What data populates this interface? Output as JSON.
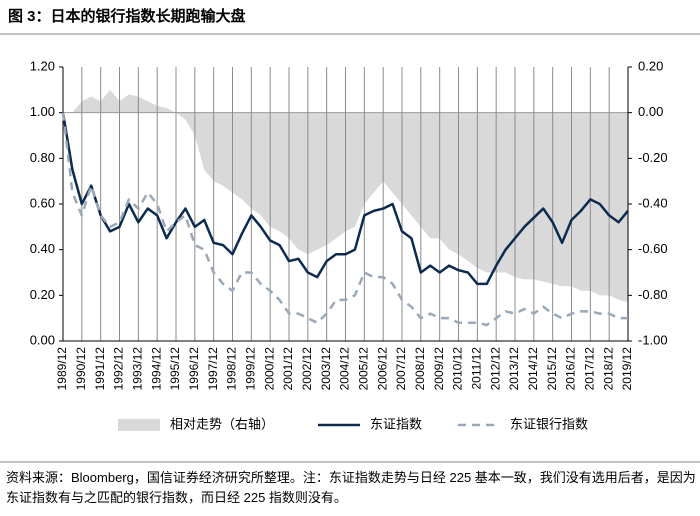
{
  "chart_data": {
    "type": "line",
    "title": "图 3：日本的银行指数长期跑输大盘",
    "note": "资料来源：Bloomberg，国信证券经济研究所整理。注：东证指数走势与日经 225 基本一致，我们没有选用后者，是因为东证指数有与之匹配的银行指数，而日经 225 指数则没有。",
    "categories": [
      "1989/12",
      null,
      "1990/12",
      null,
      "1991/12",
      null,
      "1992/12",
      null,
      "1993/12",
      null,
      "1994/12",
      null,
      "1995/12",
      null,
      "1996/12",
      null,
      "1997/12",
      null,
      "1998/12",
      null,
      "1999/12",
      null,
      "2000/12",
      null,
      "2001/12",
      null,
      "2002/12",
      null,
      "2003/12",
      null,
      "2004/12",
      null,
      "2005/12",
      null,
      "2006/12",
      null,
      "2007/12",
      null,
      "2008/12",
      null,
      "2009/12",
      null,
      "2010/12",
      null,
      "2011/12",
      null,
      "2012/12",
      null,
      "2013/12",
      null,
      "2014/12",
      null,
      "2015/12",
      null,
      "2016/12",
      null,
      "2017/12",
      null,
      "2018/12",
      null,
      "2019/12"
    ],
    "series": [
      {
        "name": "相对走势（右轴）",
        "type": "area",
        "axis": "y2",
        "color": "#d9d9d9",
        "values": [
          0,
          0,
          0.05,
          0.07,
          0.05,
          0.1,
          0.05,
          0.08,
          0.07,
          0.05,
          0.03,
          0.02,
          0,
          -0.03,
          -0.1,
          -0.25,
          -0.3,
          -0.32,
          -0.35,
          -0.38,
          -0.42,
          -0.45,
          -0.5,
          -0.52,
          -0.55,
          -0.6,
          -0.62,
          -0.6,
          -0.58,
          -0.55,
          -0.52,
          -0.5,
          -0.4,
          -0.35,
          -0.3,
          -0.35,
          -0.4,
          -0.45,
          -0.5,
          -0.55,
          -0.55,
          -0.6,
          -0.62,
          -0.65,
          -0.68,
          -0.7,
          -0.7,
          -0.7,
          -0.72,
          -0.73,
          -0.73,
          -0.74,
          -0.75,
          -0.76,
          -0.76,
          -0.78,
          -0.78,
          -0.8,
          -0.8,
          -0.82,
          -0.83
        ]
      },
      {
        "name": "东证指数",
        "type": "line",
        "color": "#0d2a4f",
        "values": [
          1.0,
          0.75,
          0.6,
          0.68,
          0.55,
          0.48,
          0.5,
          0.6,
          0.52,
          0.58,
          0.55,
          0.45,
          0.52,
          0.58,
          0.5,
          0.53,
          0.43,
          0.42,
          0.38,
          0.47,
          0.55,
          0.5,
          0.44,
          0.42,
          0.35,
          0.36,
          0.3,
          0.28,
          0.35,
          0.38,
          0.38,
          0.4,
          0.55,
          0.57,
          0.58,
          0.6,
          0.48,
          0.45,
          0.3,
          0.33,
          0.3,
          0.33,
          0.31,
          0.3,
          0.25,
          0.25,
          0.33,
          0.4,
          0.45,
          0.5,
          0.54,
          0.58,
          0.52,
          0.43,
          0.53,
          0.57,
          0.62,
          0.6,
          0.55,
          0.52,
          0.57
        ]
      },
      {
        "name": "东证银行指数",
        "type": "line",
        "dashed": true,
        "color": "#9aa8b8",
        "values": [
          1.0,
          0.65,
          0.55,
          0.68,
          0.55,
          0.5,
          0.52,
          0.62,
          0.58,
          0.65,
          0.6,
          0.48,
          0.52,
          0.55,
          0.42,
          0.4,
          0.3,
          0.25,
          0.22,
          0.3,
          0.3,
          0.25,
          0.22,
          0.18,
          0.12,
          0.12,
          0.1,
          0.08,
          0.12,
          0.18,
          0.18,
          0.2,
          0.3,
          0.28,
          0.28,
          0.25,
          0.18,
          0.15,
          0.1,
          0.12,
          0.1,
          0.1,
          0.08,
          0.08,
          0.08,
          0.07,
          0.1,
          0.13,
          0.12,
          0.14,
          0.12,
          0.15,
          0.12,
          0.1,
          0.12,
          0.13,
          0.13,
          0.12,
          0.12,
          0.1,
          0.1
        ]
      }
    ],
    "ylim": [
      0,
      1.2
    ],
    "yticks": [
      {
        "value": 0,
        "label": "0.00"
      },
      {
        "value": 0.2,
        "label": "0.20"
      },
      {
        "value": 0.4,
        "label": "0.40"
      },
      {
        "value": 0.6,
        "label": "0.60"
      },
      {
        "value": 0.8,
        "label": "0.80"
      },
      {
        "value": 1,
        "label": "1.00"
      },
      {
        "value": 1.2,
        "label": "1.20"
      }
    ],
    "y2lim": [
      -1,
      0.2
    ],
    "y2ticks": [
      {
        "value": -1,
        "label": "-1.00"
      },
      {
        "value": -0.8,
        "label": "-0.80"
      },
      {
        "value": -0.6,
        "label": "-0.60"
      },
      {
        "value": -0.4,
        "label": "-0.40"
      },
      {
        "value": -0.2,
        "label": "-0.20"
      },
      {
        "value": 0,
        "label": "0.00"
      },
      {
        "value": 0.2,
        "label": "0.20"
      }
    ],
    "legend": "bottom"
  }
}
